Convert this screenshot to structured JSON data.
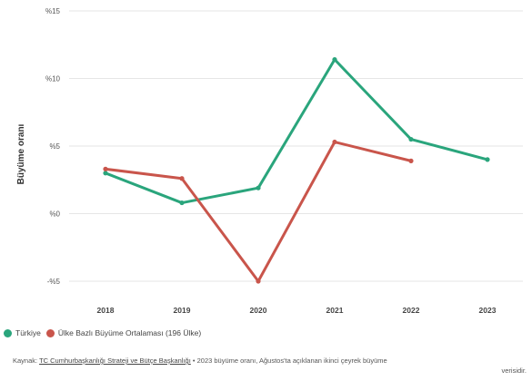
{
  "chart_data": {
    "type": "line",
    "ylabel": "Büyüme oranı",
    "xlabel": "",
    "categories": [
      "2018",
      "2019",
      "2020",
      "2021",
      "2022",
      "2023"
    ],
    "ylim": [
      -5,
      15
    ],
    "yticks": [
      -5,
      0,
      5,
      10,
      15
    ],
    "ytick_labels": [
      "-%5",
      "%0",
      "%5",
      "%10",
      "%15"
    ],
    "grid": true,
    "legend_position": "bottom-left",
    "series": [
      {
        "name": "Türkiye",
        "color": "#2aa57c",
        "values": [
          3.0,
          0.8,
          1.9,
          11.4,
          5.5,
          4.0
        ]
      },
      {
        "name": "Ülke Bazlı Büyüme Ortalaması (196 Ülke)",
        "color": "#c9554b",
        "values": [
          3.3,
          2.6,
          -5.0,
          5.3,
          3.9,
          null
        ]
      }
    ]
  },
  "source": {
    "prefix": "Kaynak: ",
    "link": "TC Cumhurbaşkanlığı Strateji ve Bütçe Başkanlığı",
    "text": " • 2023 büyüme oranı, Ağustos'ta açıklanan ikinci çeyrek büyüme",
    "tail": "verisidir."
  }
}
